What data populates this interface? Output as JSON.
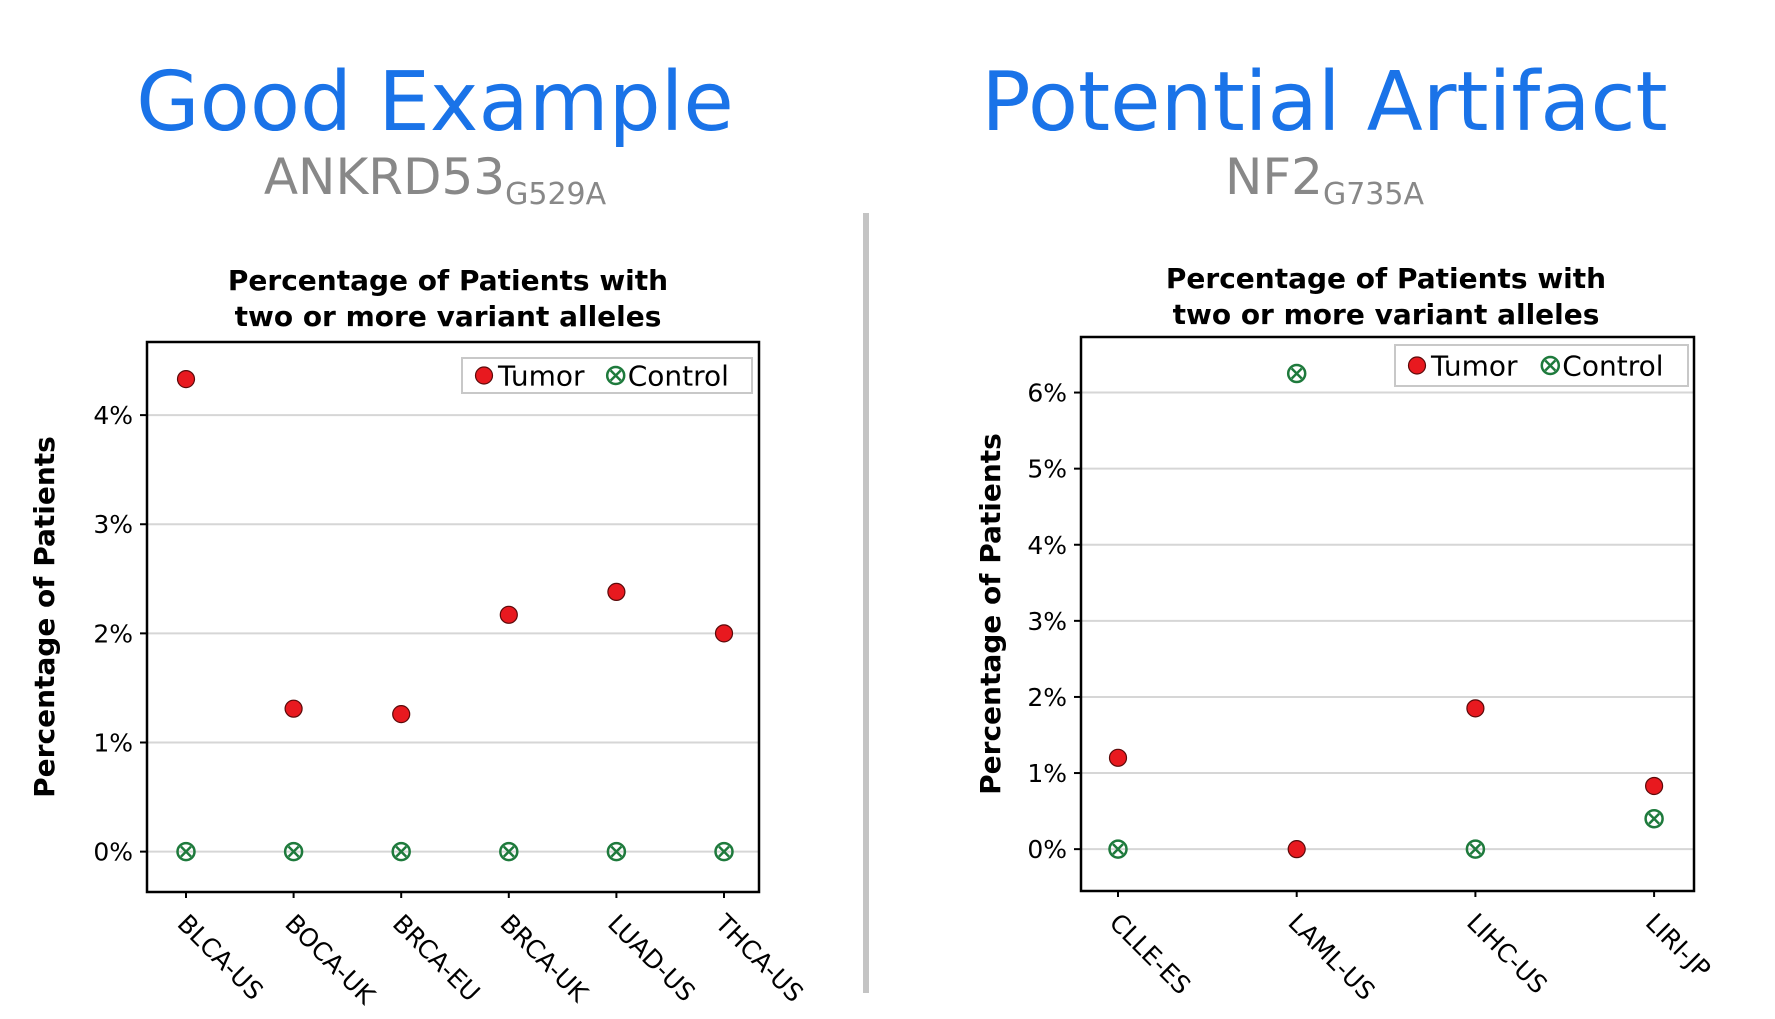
{
  "panels": [
    {
      "heading": "Good Example",
      "gene": "ANKRD53",
      "mutation": "G529A"
    },
    {
      "heading": "Potential Artifact",
      "gene": "NF2",
      "mutation": "G735A"
    }
  ],
  "colors": {
    "heading": "#1a73e8",
    "gene": "#888888",
    "tumor": "#e8191f",
    "control": "#1e7a3c",
    "grid": "#d6d6d6",
    "divider": "#c4c4c4"
  },
  "chart_data": [
    {
      "type": "scatter",
      "title": "Percentage of Patients with two or more variant alleles",
      "title_lines": [
        "Percentage of Patients with",
        "two or more variant alleles"
      ],
      "ylabel": "Percentage of Patients",
      "xlabel": "",
      "categories": [
        "BLCA-US",
        "BOCA-UK",
        "BRCA-EU",
        "BRCA-UK",
        "LUAD-US",
        "THCA-US"
      ],
      "yticks": [
        0,
        1,
        2,
        3,
        4
      ],
      "ytick_labels": [
        "0%",
        "1%",
        "2%",
        "3%",
        "4%"
      ],
      "ylim": [
        -0.37,
        4.67
      ],
      "grid": true,
      "legend": "top-right",
      "series": [
        {
          "name": "Tumor",
          "marker": "filled-circle",
          "values": [
            4.33,
            1.31,
            1.26,
            2.17,
            2.38,
            2.0
          ]
        },
        {
          "name": "Control",
          "marker": "circled-x",
          "values": [
            0,
            0,
            0,
            0,
            0,
            0
          ]
        }
      ]
    },
    {
      "type": "scatter",
      "title": "Percentage of Patients with two or more variant alleles",
      "title_lines": [
        "Percentage of Patients with",
        "two or more variant alleles"
      ],
      "ylabel": "Percentage of Patients",
      "xlabel": "",
      "categories": [
        "CLLE-ES",
        "LAML-US",
        "LIHC-US",
        "LIRI-JP"
      ],
      "yticks": [
        0,
        1,
        2,
        3,
        4,
        5,
        6
      ],
      "ytick_labels": [
        "0%",
        "1%",
        "2%",
        "3%",
        "4%",
        "5%",
        "6%"
      ],
      "ylim": [
        -0.55,
        6.73
      ],
      "grid": true,
      "legend": "top-right",
      "series": [
        {
          "name": "Tumor",
          "marker": "filled-circle",
          "values": [
            1.2,
            0,
            1.85,
            0.83
          ]
        },
        {
          "name": "Control",
          "marker": "circled-x",
          "values": [
            0,
            6.25,
            0,
            0.4
          ]
        }
      ]
    }
  ]
}
